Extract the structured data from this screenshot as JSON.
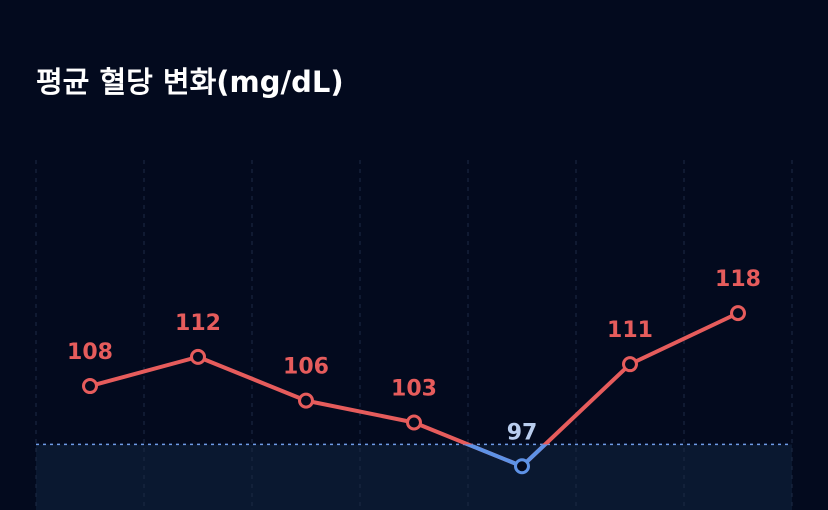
{
  "chart_data": {
    "type": "line",
    "title": "평균 혈당 변화(mg/dL)",
    "values": [
      108,
      112,
      106,
      103,
      97,
      111,
      118
    ],
    "color": "#e65c5c",
    "below_color": "#5e92e6",
    "below_label_color": "#b9cdee",
    "threshold": 100,
    "ylim": [
      91,
      139
    ]
  }
}
